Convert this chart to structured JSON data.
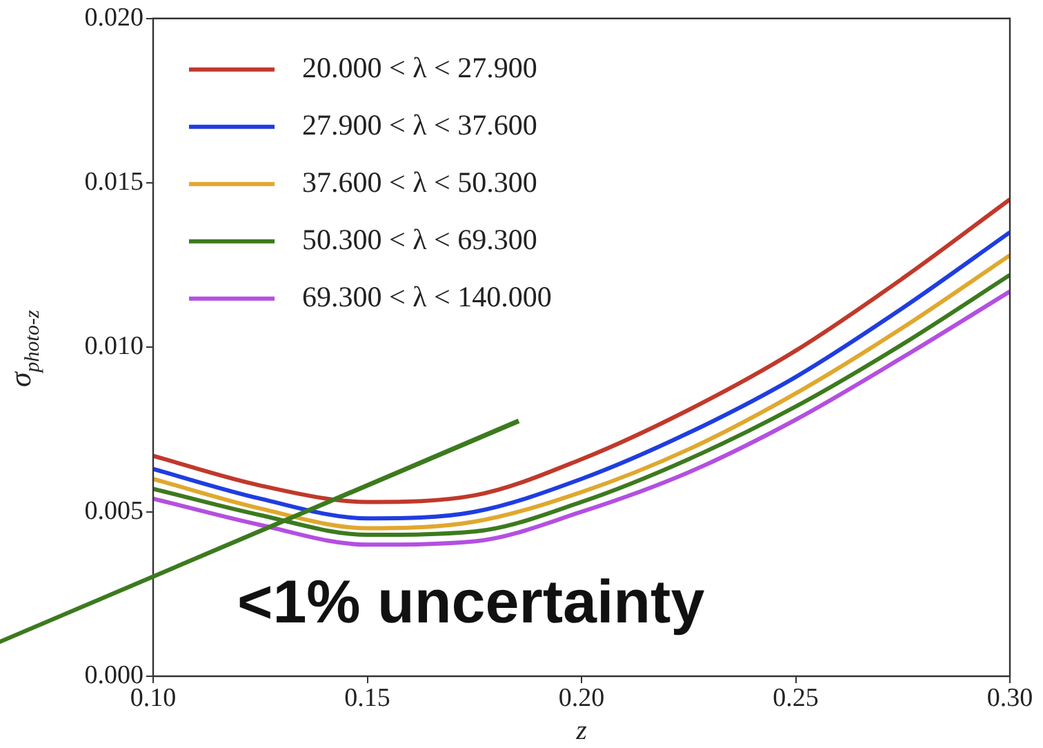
{
  "chart_data": {
    "type": "line",
    "xlabel": "z",
    "ylabel": "σ$_{photo-z}$",
    "x": [
      0.1,
      0.125,
      0.15,
      0.175,
      0.2,
      0.225,
      0.25,
      0.275,
      0.3
    ],
    "series": [
      {
        "name": "20.000 < λ < 27.900",
        "color": "#c0392b",
        "values": [
          0.0067,
          0.0058,
          0.0053,
          0.0055,
          0.0066,
          0.0081,
          0.0099,
          0.0121,
          0.0145
        ]
      },
      {
        "name": "27.900 < λ < 37.600",
        "color": "#1f3de0",
        "values": [
          0.0063,
          0.0054,
          0.0048,
          0.005,
          0.006,
          0.0074,
          0.0091,
          0.0112,
          0.0135
        ]
      },
      {
        "name": "37.600 < λ < 50.300",
        "color": "#e0a82e",
        "values": [
          0.006,
          0.0051,
          0.0045,
          0.0047,
          0.0056,
          0.0069,
          0.0086,
          0.0106,
          0.0128
        ]
      },
      {
        "name": "50.300 < λ < 69.300",
        "color": "#3c7a1e",
        "values": [
          0.0057,
          0.0049,
          0.0043,
          0.0044,
          0.0053,
          0.0066,
          0.0082,
          0.0101,
          0.0122
        ]
      },
      {
        "name": "69.300 < λ < 140.000",
        "color": "#b44fe0",
        "values": [
          0.0054,
          0.0046,
          0.004,
          0.0041,
          0.005,
          0.0062,
          0.0078,
          0.0097,
          0.0117
        ]
      }
    ],
    "xlim": [
      0.1,
      0.3
    ],
    "xticks": [
      {
        "value": 0.1,
        "label": "0.10"
      },
      {
        "value": 0.15,
        "label": "0.15"
      },
      {
        "value": 0.2,
        "label": "0.20"
      },
      {
        "value": 0.25,
        "label": "0.25"
      },
      {
        "value": 0.3,
        "label": "0.30"
      }
    ],
    "ylim": [
      0,
      0.02
    ],
    "yticks": [
      {
        "value": 0,
        "label": "0.000"
      },
      {
        "value": 0.005,
        "label": "0.005"
      },
      {
        "value": 0.01,
        "label": "0.010"
      },
      {
        "value": 0.015,
        "label": "0.015"
      },
      {
        "value": 0.02,
        "label": "0.020"
      }
    ],
    "annotations": [
      "<1% uncertainty"
    ],
    "legend": "top left",
    "grid": false,
    "marker": "none",
    "line_style": "solid"
  }
}
